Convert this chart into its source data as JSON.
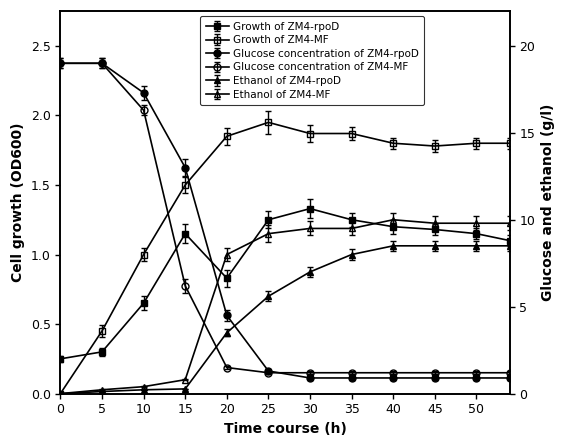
{
  "time": [
    0,
    5,
    10,
    15,
    20,
    25,
    30,
    35,
    40,
    45,
    50,
    54
  ],
  "growth_rpoD": [
    0.25,
    0.3,
    0.65,
    1.15,
    0.83,
    1.25,
    1.33,
    1.25,
    1.2,
    1.18,
    1.15,
    1.1
  ],
  "growth_rpoD_err": [
    0.02,
    0.03,
    0.05,
    0.07,
    0.06,
    0.06,
    0.07,
    0.05,
    0.05,
    0.04,
    0.04,
    0.04
  ],
  "growth_MF": [
    0.0,
    0.45,
    1.0,
    1.5,
    1.85,
    1.95,
    1.87,
    1.87,
    1.8,
    1.78,
    1.8,
    1.8
  ],
  "growth_MF_err": [
    0.01,
    0.04,
    0.05,
    0.06,
    0.06,
    0.08,
    0.06,
    0.05,
    0.04,
    0.04,
    0.04,
    0.04
  ],
  "glucose_rpoD": [
    19.0,
    19.0,
    17.3,
    13.0,
    4.5,
    1.3,
    0.9,
    0.9,
    0.9,
    0.9,
    0.9,
    0.9
  ],
  "glucose_rpoD_err": [
    0.3,
    0.3,
    0.4,
    0.5,
    0.3,
    0.1,
    0.1,
    0.1,
    0.1,
    0.1,
    0.1,
    0.1
  ],
  "glucose_MF": [
    19.0,
    19.0,
    16.3,
    6.2,
    1.5,
    1.2,
    1.2,
    1.2,
    1.2,
    1.2,
    1.2,
    1.2
  ],
  "glucose_MF_err": [
    0.3,
    0.3,
    0.3,
    0.4,
    0.1,
    0.1,
    0.1,
    0.1,
    0.1,
    0.1,
    0.1,
    0.1
  ],
  "ethanol_rpoD": [
    0.0,
    0.12,
    0.22,
    0.27,
    3.5,
    5.6,
    7.0,
    8.0,
    8.5,
    8.5,
    8.5,
    8.5
  ],
  "ethanol_rpoD_err": [
    0.0,
    0.01,
    0.02,
    0.02,
    0.2,
    0.3,
    0.3,
    0.3,
    0.3,
    0.3,
    0.3,
    0.3
  ],
  "ethanol_MF": [
    0.0,
    0.22,
    0.4,
    0.8,
    8.0,
    9.2,
    9.5,
    9.5,
    10.0,
    9.8,
    9.8,
    9.8
  ],
  "ethanol_MF_err": [
    0.0,
    0.02,
    0.03,
    0.04,
    0.4,
    0.5,
    0.4,
    0.4,
    0.4,
    0.4,
    0.4,
    0.4
  ],
  "ylabel_left": "Cell growth (OD600)",
  "ylabel_right": "Glucose and ethanol (g/l)",
  "xlabel": "Time course (h)",
  "ylim_left": [
    0.0,
    2.75
  ],
  "ylim_right": [
    0.0,
    22.0
  ],
  "yticks_left": [
    0.0,
    0.5,
    1.0,
    1.5,
    2.0,
    2.5
  ],
  "yticks_right": [
    0,
    5,
    10,
    15,
    20
  ],
  "xticks": [
    0,
    5,
    10,
    15,
    20,
    25,
    30,
    35,
    40,
    45,
    50
  ],
  "xlim": [
    0,
    54
  ],
  "legend_labels": [
    "Growth of ZM4-rpoD",
    "Growth of ZM4-MF",
    "Glucose concentration of ZM4-rpoD",
    "Glucose concentration of ZM4-MF",
    "Ethanol of ZM4-rpoD",
    "Ethanol of ZM4-MF"
  ],
  "markersize": 5,
  "linewidth": 1.2,
  "capsize": 2,
  "elinewidth": 1.0
}
